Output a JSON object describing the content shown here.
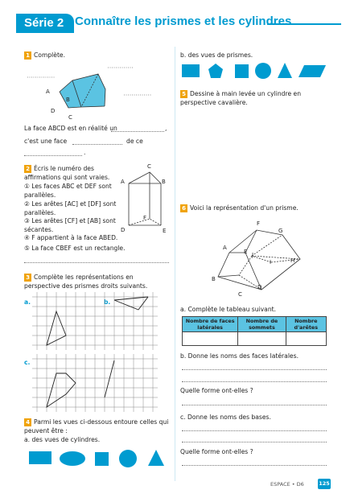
{
  "header": {
    "serie": "Série 2",
    "title": "Connaître les prismes et les cylindres"
  },
  "ex1": {
    "num": "1",
    "label": "Complète.",
    "vertices": [
      "A",
      "B",
      "C",
      "D"
    ],
    "line1": "La face ABCD est en réalité un",
    "line2_a": "c'est une face",
    "line2_b": "de ce",
    "comma": ",",
    "period": "."
  },
  "ex2": {
    "num": "2",
    "intro": "Écris le numéro des affirmations qui sont vraies.",
    "items": [
      "① Les faces ABC et DEF sont parallèles.",
      "② Les arêtes [AC] et [DF] sont parallèles.",
      "③ Les arêtes [CF] et [AB] sont sécantes.",
      "④ F appartient à la face ABED.",
      "⑤ La face CBEF est un rectangle."
    ],
    "vertices": [
      "A",
      "B",
      "C",
      "D",
      "E",
      "F"
    ]
  },
  "ex3": {
    "num": "3",
    "intro": "Complète les représentations en perspective des prismes droits suivants.",
    "labels": [
      "a.",
      "b.",
      "c."
    ]
  },
  "ex4": {
    "num": "4",
    "intro": "Parmi les vues ci-dessous entoure celles qui peuvent être :",
    "a": "a. des vues de cylindres.",
    "b": "b. des vues de prismes."
  },
  "ex5": {
    "num": "5",
    "text": "Dessine à main levée un cylindre en perspective cavalière."
  },
  "ex6": {
    "num": "6",
    "intro": "Voici la représentation d'un prisme.",
    "vertices": [
      "A",
      "B",
      "C",
      "D",
      "E",
      "F",
      "G",
      "H",
      "I",
      "J"
    ],
    "a": "a. Complète le tableau suivant.",
    "table_headers": [
      "Nombre de faces latérales",
      "Nombre de sommets",
      "Nombre d'arêtes"
    ],
    "b": "b. Donne les noms des faces latérales.",
    "q1": "Quelle forme ont-elles ?",
    "c": "c. Donne les noms des bases.",
    "q2": "Quelle forme ont-elles ?"
  },
  "footer": {
    "section": "ESPACE • D6",
    "page": "125"
  },
  "colors": {
    "accent": "#009bd0",
    "number_badge": "#f0a30a",
    "table_header": "#5bc3e2"
  }
}
